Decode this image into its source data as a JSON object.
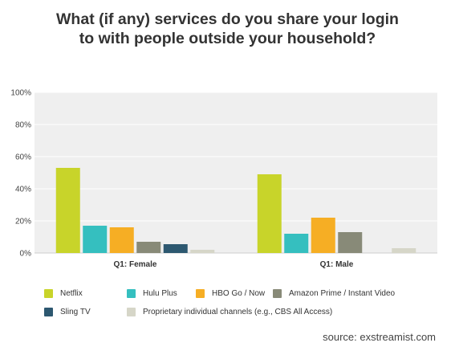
{
  "chart_data": {
    "type": "bar",
    "title": "What (if any) services do you share your login to with people outside your household?",
    "categories": [
      "Q1: Female",
      "Q1: Male"
    ],
    "series": [
      {
        "name": "Netflix",
        "color": "#C8D42A",
        "values": [
          53,
          49
        ]
      },
      {
        "name": "Hulu Plus",
        "color": "#35BFBF",
        "values": [
          17,
          12
        ]
      },
      {
        "name": "HBO Go / Now",
        "color": "#F6AE24",
        "values": [
          16,
          22
        ]
      },
      {
        "name": "Amazon Prime / Instant Video",
        "color": "#888A78",
        "values": [
          7,
          13
        ]
      },
      {
        "name": "Sling TV",
        "color": "#2D5870",
        "values": [
          5.5,
          0
        ]
      },
      {
        "name": "Proprietary individual channels (e.g., CBS All Access)",
        "color": "#D6D6C8",
        "values": [
          2,
          3
        ]
      }
    ],
    "yticks": [
      "0%",
      "20%",
      "40%",
      "60%",
      "80%",
      "100%"
    ],
    "ylim": [
      0,
      100
    ],
    "grid": true,
    "legend_position": "bottom"
  },
  "source": "source: exstreamist.com"
}
